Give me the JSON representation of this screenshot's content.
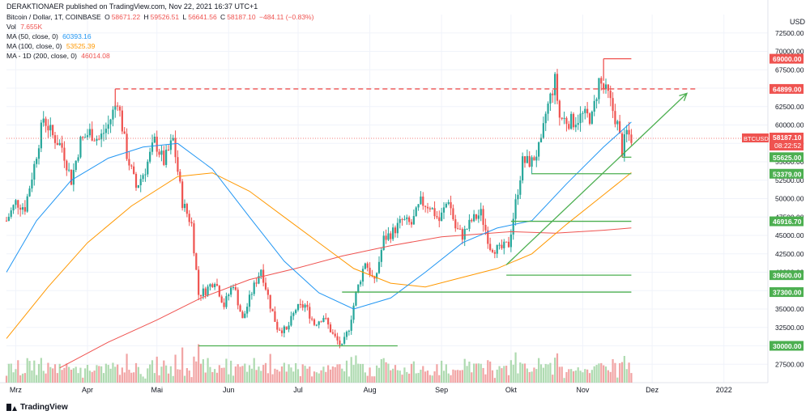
{
  "header": {
    "publisher_line": "DERAKTIONAER published on TradingView.com, Nov 22, 2021 16:37 UTC+1",
    "symbol": "Bitcoin / Dollar, 1T, COINBASE",
    "ohlc": {
      "o_label": "O",
      "o": "58671.22",
      "h_label": "H",
      "h": "59526.51",
      "l_label": "L",
      "l": "56641.56",
      "c_label": "C",
      "c": "58187.10",
      "change": "−484.11 (−0.83%)"
    },
    "vol_label": "Vol",
    "vol": "7.655K",
    "ma_lines": [
      {
        "label": "MA (50, close, 0)",
        "value": "60393.16",
        "color": "#2196f3"
      },
      {
        "label": "MA (100, close, 0)",
        "value": "53525.39",
        "color": "#ff9800"
      },
      {
        "label": "MA - 1D (200, close, 0)",
        "value": "46014.08",
        "color": "#ef5350"
      }
    ]
  },
  "currency": "USD",
  "price_axis": {
    "ticks": [
      "72500.00",
      "70000.00",
      "67500.00",
      "62500.00",
      "60000.00",
      "57500.00",
      "55000.00",
      "52500.00",
      "50000.00",
      "47500.00",
      "45000.00",
      "42500.00",
      "40000.00",
      "35000.00",
      "32500.00",
      "27500.00"
    ],
    "current_label": "BTCUSD",
    "current_price": "58187.10",
    "countdown": "08:22:52"
  },
  "time_axis": {
    "labels": [
      "Mrz",
      "Apr",
      "Mai",
      "Jun",
      "Jul",
      "Aug",
      "Sep",
      "Okt",
      "Nov",
      "Dez",
      "2022"
    ]
  },
  "levels": [
    {
      "price": 69000,
      "label": "69000.00",
      "color": "#ef5350",
      "dashed": false
    },
    {
      "price": 64899,
      "label": "64899.00",
      "color": "#ef5350",
      "dashed": true
    },
    {
      "price": 55625,
      "label": "55625.00",
      "color": "#4caf50",
      "dashed": false
    },
    {
      "price": 53379,
      "label": "53379.00",
      "color": "#4caf50",
      "dashed": false
    },
    {
      "price": 46916.7,
      "label": "46916.70",
      "color": "#4caf50",
      "dashed": false
    },
    {
      "price": 39600,
      "label": "39600.00",
      "color": "#4caf50",
      "dashed": false
    },
    {
      "price": 37300,
      "label": "37300.00",
      "color": "#4caf50",
      "dashed": false
    },
    {
      "price": 30000,
      "label": "30000.00",
      "color": "#4caf50",
      "dashed": false
    }
  ],
  "colors": {
    "up": "#26a69a",
    "down": "#ef5350",
    "grid": "#f0f3fa",
    "ma50": "#2196f3",
    "ma100": "#ff9800",
    "ma200": "#ef5350",
    "support": "#4caf50",
    "resistance": "#ef5350"
  },
  "chart_data": {
    "type": "candlestick",
    "title": "Bitcoin / Dollar, 1T, COINBASE",
    "ylim": [
      25000,
      75000
    ],
    "x_range": [
      "2021-02-25",
      "2022-01-20"
    ],
    "close_series": [
      [
        "2021-02-25",
        47000
      ],
      [
        "2021-03-01",
        49500
      ],
      [
        "2021-03-05",
        48800
      ],
      [
        "2021-03-09",
        54500
      ],
      [
        "2021-03-13",
        61000
      ],
      [
        "2021-03-17",
        58500
      ],
      [
        "2021-03-21",
        57000
      ],
      [
        "2021-03-25",
        52500
      ],
      [
        "2021-03-29",
        57800
      ],
      [
        "2021-04-02",
        59000
      ],
      [
        "2021-04-06",
        58000
      ],
      [
        "2021-04-10",
        60000
      ],
      [
        "2021-04-14",
        63500
      ],
      [
        "2021-04-18",
        56000
      ],
      [
        "2021-04-22",
        51500
      ],
      [
        "2021-04-26",
        54000
      ],
      [
        "2021-04-30",
        57800
      ],
      [
        "2021-05-04",
        55000
      ],
      [
        "2021-05-08",
        58000
      ],
      [
        "2021-05-12",
        49500
      ],
      [
        "2021-05-16",
        46500
      ],
      [
        "2021-05-19",
        37000
      ],
      [
        "2021-05-22",
        37500
      ],
      [
        "2021-05-26",
        39000
      ],
      [
        "2021-05-30",
        35500
      ],
      [
        "2021-06-03",
        38500
      ],
      [
        "2021-06-07",
        33500
      ],
      [
        "2021-06-11",
        37300
      ],
      [
        "2021-06-15",
        40500
      ],
      [
        "2021-06-19",
        35500
      ],
      [
        "2021-06-22",
        32500
      ],
      [
        "2021-06-26",
        32000
      ],
      [
        "2021-06-30",
        35000
      ],
      [
        "2021-07-04",
        35500
      ],
      [
        "2021-07-08",
        33000
      ],
      [
        "2021-07-12",
        34000
      ],
      [
        "2021-07-16",
        31500
      ],
      [
        "2021-07-20",
        29800
      ],
      [
        "2021-07-23",
        32500
      ],
      [
        "2021-07-26",
        37000
      ],
      [
        "2021-07-30",
        41500
      ],
      [
        "2021-08-03",
        38500
      ],
      [
        "2021-08-07",
        44500
      ],
      [
        "2021-08-11",
        45500
      ],
      [
        "2021-08-15",
        47000
      ],
      [
        "2021-08-19",
        46500
      ],
      [
        "2021-08-23",
        49500
      ],
      [
        "2021-08-27",
        49000
      ],
      [
        "2021-08-31",
        47000
      ],
      [
        "2021-09-04",
        50000
      ],
      [
        "2021-09-07",
        46000
      ],
      [
        "2021-09-10",
        45000
      ],
      [
        "2021-09-14",
        47000
      ],
      [
        "2021-09-18",
        48000
      ],
      [
        "2021-09-22",
        43500
      ],
      [
        "2021-09-26",
        43000
      ],
      [
        "2021-09-30",
        43800
      ],
      [
        "2021-10-02",
        47500
      ],
      [
        "2021-10-06",
        55000
      ],
      [
        "2021-10-10",
        55000
      ],
      [
        "2021-10-14",
        57300
      ],
      [
        "2021-10-16",
        61500
      ],
      [
        "2021-10-20",
        66000
      ],
      [
        "2021-10-22",
        61000
      ],
      [
        "2021-10-26",
        60500
      ],
      [
        "2021-10-28",
        60500
      ],
      [
        "2021-11-01",
        61300
      ],
      [
        "2021-11-05",
        61000
      ],
      [
        "2021-11-08",
        66000
      ],
      [
        "2021-11-10",
        64900
      ],
      [
        "2021-11-12",
        64000
      ],
      [
        "2021-11-16",
        60000
      ],
      [
        "2021-11-18",
        56500
      ],
      [
        "2021-11-20",
        59000
      ],
      [
        "2021-11-22",
        58187.1
      ]
    ],
    "ma50": [
      [
        "2021-02-25",
        40000
      ],
      [
        "2021-03-10",
        47000
      ],
      [
        "2021-03-25",
        52500
      ],
      [
        "2021-04-10",
        55500
      ],
      [
        "2021-04-25",
        57000
      ],
      [
        "2021-05-10",
        57500
      ],
      [
        "2021-05-25",
        54000
      ],
      [
        "2021-06-10",
        47500
      ],
      [
        "2021-06-25",
        41500
      ],
      [
        "2021-07-10",
        37200
      ],
      [
        "2021-07-25",
        35000
      ],
      [
        "2021-08-10",
        36500
      ],
      [
        "2021-08-25",
        40000
      ],
      [
        "2021-09-10",
        44000
      ],
      [
        "2021-09-25",
        46000
      ],
      [
        "2021-10-10",
        47000
      ],
      [
        "2021-10-25",
        52000
      ],
      [
        "2021-11-10",
        57000
      ],
      [
        "2021-11-22",
        60393.16
      ]
    ],
    "ma100": [
      [
        "2021-02-25",
        31000
      ],
      [
        "2021-03-15",
        38000
      ],
      [
        "2021-04-01",
        44000
      ],
      [
        "2021-04-20",
        49000
      ],
      [
        "2021-05-10",
        53000
      ],
      [
        "2021-05-25",
        53500
      ],
      [
        "2021-06-10",
        51000
      ],
      [
        "2021-06-25",
        47500
      ],
      [
        "2021-07-10",
        44000
      ],
      [
        "2021-07-25",
        40500
      ],
      [
        "2021-08-10",
        38500
      ],
      [
        "2021-08-25",
        38000
      ],
      [
        "2021-09-10",
        39300
      ],
      [
        "2021-09-25",
        40500
      ],
      [
        "2021-10-10",
        42500
      ],
      [
        "2021-10-25",
        46500
      ],
      [
        "2021-11-10",
        50500
      ],
      [
        "2021-11-22",
        53525.39
      ]
    ],
    "ma200": [
      [
        "2021-03-20",
        27000
      ],
      [
        "2021-04-10",
        30500
      ],
      [
        "2021-05-01",
        33500
      ],
      [
        "2021-05-20",
        36500
      ],
      [
        "2021-06-10",
        39000
      ],
      [
        "2021-06-30",
        40500
      ],
      [
        "2021-07-20",
        42200
      ],
      [
        "2021-08-10",
        43600
      ],
      [
        "2021-09-01",
        44800
      ],
      [
        "2021-10-01",
        45500
      ],
      [
        "2021-10-20",
        45300
      ],
      [
        "2021-11-10",
        45700
      ],
      [
        "2021-11-22",
        46014.08
      ]
    ],
    "trendlines": [
      {
        "from": [
          "2021-05-19",
          30000
        ],
        "to": [
          "2021-08-13",
          30000
        ]
      },
      {
        "from": [
          "2021-07-20",
          37300
        ],
        "to": [
          "2021-11-22",
          37300
        ]
      },
      {
        "from": [
          "2021-09-29",
          39600
        ],
        "to": [
          "2021-11-22",
          39600
        ]
      },
      {
        "from": [
          "2021-10-01",
          46916.7
        ],
        "to": [
          "2021-11-22",
          46916.7
        ]
      },
      {
        "from": [
          "2021-10-10",
          53379
        ],
        "to": [
          "2021-11-22",
          53379
        ]
      },
      {
        "from": [
          "2021-11-18",
          55625
        ],
        "to": [
          "2021-11-22",
          55625
        ]
      },
      {
        "from": [
          "2021-09-29",
          41000
        ],
        "to": [
          "2021-12-16",
          64300
        ],
        "arrow": true
      },
      {
        "from": [
          "2021-04-13",
          64899
        ],
        "to": [
          "2021-12-20",
          64899
        ],
        "dashed": true
      },
      {
        "from": [
          "2021-11-10",
          69000
        ],
        "to": [
          "2021-11-22",
          69000
        ]
      }
    ],
    "xlabel": "",
    "ylabel": "USD"
  }
}
